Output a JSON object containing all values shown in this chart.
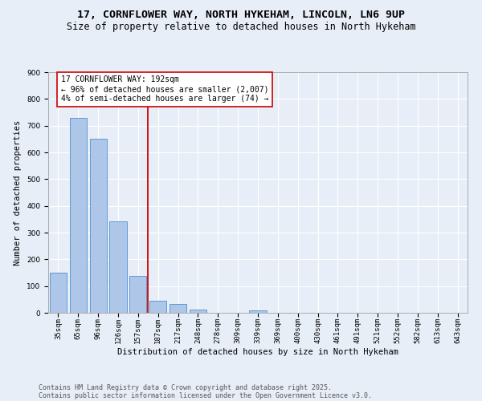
{
  "title1": "17, CORNFLOWER WAY, NORTH HYKEHAM, LINCOLN, LN6 9UP",
  "title2": "Size of property relative to detached houses in North Hykeham",
  "xlabel": "Distribution of detached houses by size in North Hykeham",
  "ylabel": "Number of detached properties",
  "categories": [
    "35sqm",
    "65sqm",
    "96sqm",
    "126sqm",
    "157sqm",
    "187sqm",
    "217sqm",
    "248sqm",
    "278sqm",
    "309sqm",
    "339sqm",
    "369sqm",
    "400sqm",
    "430sqm",
    "461sqm",
    "491sqm",
    "521sqm",
    "552sqm",
    "582sqm",
    "613sqm",
    "643sqm"
  ],
  "values": [
    150,
    730,
    650,
    342,
    137,
    44,
    33,
    13,
    0,
    0,
    8,
    0,
    0,
    0,
    0,
    0,
    0,
    0,
    0,
    0,
    0
  ],
  "bar_color": "#aec6e8",
  "bar_edge_color": "#5b9bd5",
  "background_color": "#e8eef7",
  "vline_x": 4.5,
  "vline_color": "#cc0000",
  "annotation_text": "17 CORNFLOWER WAY: 192sqm\n← 96% of detached houses are smaller (2,007)\n4% of semi-detached houses are larger (74) →",
  "annotation_box_color": "#ffffff",
  "annotation_box_edge": "#cc0000",
  "ylim": [
    0,
    900
  ],
  "yticks": [
    0,
    100,
    200,
    300,
    400,
    500,
    600,
    700,
    800,
    900
  ],
  "footer1": "Contains HM Land Registry data © Crown copyright and database right 2025.",
  "footer2": "Contains public sector information licensed under the Open Government Licence v3.0.",
  "grid_color": "#ffffff",
  "title_fontsize": 9.5,
  "subtitle_fontsize": 8.5,
  "axis_fontsize": 7.5,
  "tick_fontsize": 6.5,
  "footer_fontsize": 6,
  "annotation_fontsize": 7
}
